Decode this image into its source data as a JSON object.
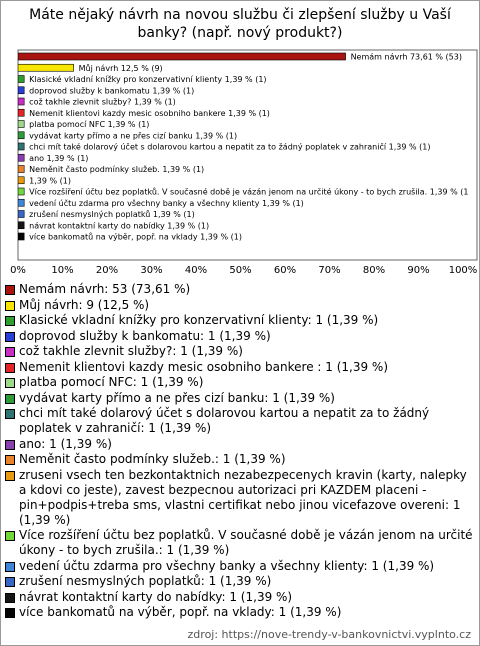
{
  "chart_data": {
    "type": "bar",
    "orientation": "horizontal",
    "title": "Máte nějaký návrh na novou službu či zlepšení služby u Vaší banky? (např. nový produkt?)",
    "values": [
      73.61,
      12.5,
      1.39,
      1.39,
      1.39,
      1.39,
      1.39,
      1.39,
      1.39,
      1.39,
      1.39,
      1.39,
      1.39,
      1.39,
      1.39,
      1.39,
      1.39
    ],
    "counts": [
      53,
      9,
      1,
      1,
      1,
      1,
      1,
      1,
      1,
      1,
      1,
      1,
      1,
      1,
      1,
      1,
      1
    ],
    "value_labels": [
      "Nemám návrh 73,61 % (53)",
      "Můj návrh 12,5 % (9)",
      "Klasické vkladní knížky pro konzervativní klienty 1,39 % (1)",
      "doprovod služby k bankomatu 1,39 % (1)",
      "což takhle zlevnit služby? 1,39 % (1)",
      "Nemenit klientovi kazdy mesic osobniho bankere  1,39 % (1)",
      "platba pomocí NFC 1,39 % (1)",
      "vydávat karty přímo a ne přes cizí banku 1,39 % (1)",
      "chci mít také dolarový účet s dolarovou kartou a nepatit za to žádný poplatek v zahraničí 1,39 % (1)",
      "ano 1,39 % (1)",
      "Neměnit často podmínky služeb. 1,39 % (1)",
      "1,39 % (1)",
      "Více rozšíření účtu bez poplatků. V současné době je vázán jenom na určité úkony - to bych zrušila. 1,39 % (1",
      "vedení účtu zdarma pro všechny banky a všechny klienty 1,39 % (1)",
      "zrušení nesmyslných poplatků 1,39 % (1)",
      "návrat kontaktní karty do nabídky 1,39 % (1)",
      "více bankomatů na výběr, popř. na vklady 1,39 % (1)"
    ],
    "legend_labels": [
      "Nemám návrh: 53 (73,61 %)",
      "Můj návrh: 9 (12,5 %)",
      "Klasické vkladní knížky pro konzervativní klienty: 1 (1,39 %)",
      "doprovod služby k bankomatu: 1 (1,39 %)",
      "což takhle zlevnit služby?: 1 (1,39 %)",
      "Nemenit klientovi kazdy mesic osobniho bankere : 1 (1,39 %)",
      "platba pomocí NFC: 1 (1,39 %)",
      "vydávat karty přímo a ne přes cizí banku: 1 (1,39 %)",
      "chci mít také dolarový účet s dolarovou kartou a nepatit za to žádný poplatek v zahraničí: 1 (1,39 %)",
      "ano: 1 (1,39 %)",
      "Neměnit často podmínky služeb.: 1 (1,39 %)",
      "zruseni vsech ten bezkontaktnich nezabezpecenych kravin (karty, nalepky a kdovi co jeste), zavest bezpecnou autorizaci pri KAZDEM placeni - pin+podpis+treba sms, vlastni certifikat nebo jinou vicefazove overeni: 1 (1,39 %)",
      "Více rozšíření účtu bez poplatků. V současné době je vázán jenom na určité úkony - to bych zrušila.: 1 (1,39 %)",
      "vedení účtu zdarma pro všechny banky a všechny klienty: 1 (1,39 %)",
      "zrušení nesmyslných poplatků: 1 (1,39 %)",
      "návrat kontaktní karty do nabídky: 1 (1,39 %)",
      "více bankomatů na výběr, popř. na vklady: 1 (1,39 %)"
    ],
    "colors": [
      "#a8140f",
      "#f7e600",
      "#2e9e2e",
      "#2a3fd6",
      "#c72ec4",
      "#e32424",
      "#9ed88a",
      "#2f9a3a",
      "#2f7373",
      "#8a3fb0",
      "#e8832a",
      "#e89a12",
      "#6fd83a",
      "#3f86d8",
      "#3766c4",
      "#151515",
      "#050505"
    ],
    "xlim": [
      0,
      100
    ],
    "xticks": [
      {
        "value": 0,
        "label": "0%"
      },
      {
        "value": 10,
        "label": "10%"
      },
      {
        "value": 20,
        "label": "20%"
      },
      {
        "value": 30,
        "label": "30%"
      },
      {
        "value": 40,
        "label": "40%"
      },
      {
        "value": 50,
        "label": "50%"
      },
      {
        "value": 60,
        "label": "60%"
      },
      {
        "value": 70,
        "label": "70%"
      },
      {
        "value": 80,
        "label": "80%"
      },
      {
        "value": 90,
        "label": "90%"
      },
      {
        "value": 100,
        "label": "100%"
      }
    ],
    "source": "zdroj: https://nove-trendy-v-bankovnictvi.vyplnto.cz"
  }
}
